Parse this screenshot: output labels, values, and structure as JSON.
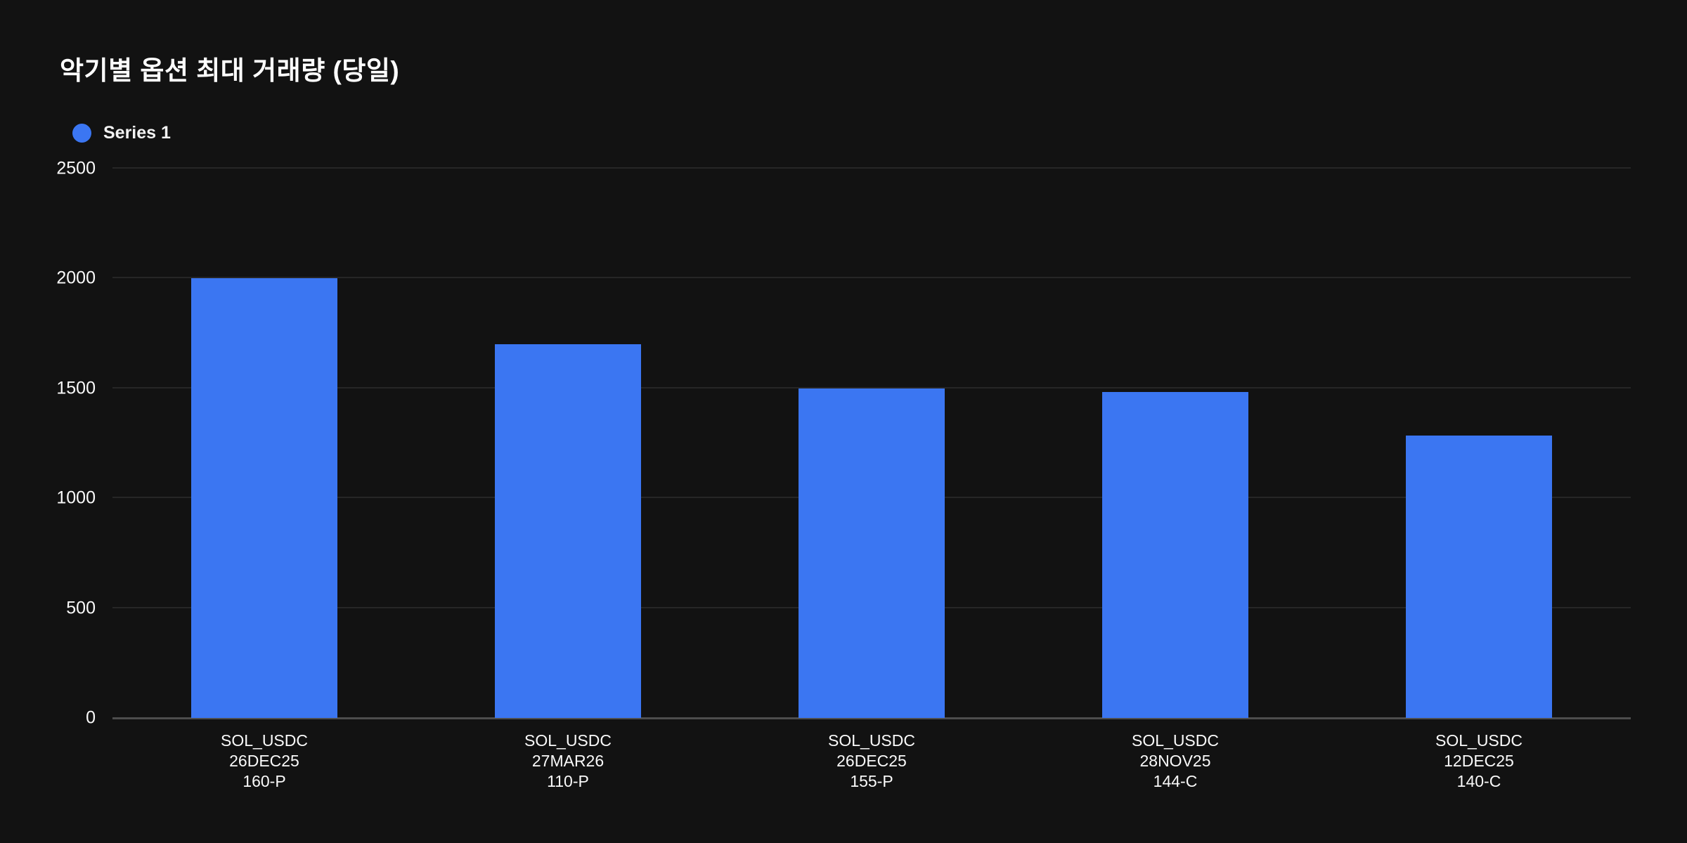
{
  "title": "악기별 옵션 최대 거래량 (당일)",
  "legend": {
    "items": [
      {
        "label": "Series 1",
        "color": "#3b76f2"
      }
    ]
  },
  "colors": {
    "background": "#121212",
    "text": "#fafafa",
    "gridline": "#262626",
    "axis_line": "#4d4d4d",
    "bar": "#3b76f2"
  },
  "chart_data": {
    "type": "bar",
    "title": "악기별 옵션 최대 거래량 (당일)",
    "categories": [
      [
        "SOL_USDC",
        "26DEC25",
        "160-P"
      ],
      [
        "SOL_USDC",
        "27MAR26",
        "110-P"
      ],
      [
        "SOL_USDC",
        "26DEC25",
        "155-P"
      ],
      [
        "SOL_USDC",
        "28NOV25",
        "144-C"
      ],
      [
        "SOL_USDC",
        "12DEC25",
        "140-C"
      ]
    ],
    "series": [
      {
        "name": "Series 1",
        "color": "#3b76f2",
        "values": [
          2000,
          1700,
          1500,
          1485,
          1285
        ]
      }
    ],
    "xlabel": "",
    "ylabel": "",
    "ylim": [
      0,
      2500
    ],
    "yticks": [
      0,
      500,
      1000,
      1500,
      2000,
      2500
    ],
    "grid": true,
    "legend_position": "top-left",
    "bar_width_fraction": 0.48
  }
}
